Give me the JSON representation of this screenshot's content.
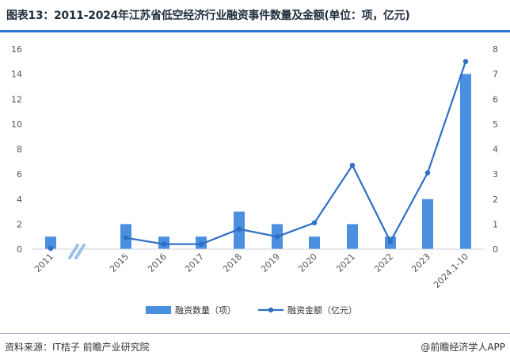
{
  "title": "图表13：2011-2024年江苏省低空经济行业融资事件数量及金额(单位：项，亿元)",
  "source": "资料来源：IT桔子 前瞻产业研究院",
  "brand": "@前瞻经济学人APP",
  "colors": {
    "bar": "#4a8fe0",
    "line": "#2e6fc4",
    "accent": "#2e75d6"
  },
  "chart_data": {
    "type": "bar",
    "categories": [
      "2011",
      "2015",
      "2016",
      "2017",
      "2018",
      "2019",
      "2020",
      "2021",
      "2022",
      "2023",
      "2024.1-10"
    ],
    "series": [
      {
        "name": "融资数量（项）",
        "type": "bar",
        "axis": "left",
        "values": [
          1,
          2,
          1,
          1,
          3,
          2,
          1,
          2,
          1,
          4,
          14
        ]
      },
      {
        "name": "融资金额（亿元）",
        "type": "line",
        "axis": "right",
        "values": [
          0.03,
          0.45,
          0.2,
          0.2,
          0.8,
          0.5,
          1.05,
          3.35,
          0.3,
          3.05,
          7.5
        ]
      }
    ],
    "y_left": {
      "lim": [
        0,
        16
      ],
      "ticks": [
        "0",
        "2",
        "4",
        "6",
        "8",
        "10",
        "12",
        "14",
        "16"
      ]
    },
    "y_right": {
      "lim": [
        0,
        8
      ],
      "ticks": [
        "0",
        "1",
        "2",
        "3",
        "4",
        "5",
        "6",
        "7",
        "8"
      ]
    },
    "axis_break_after": "2011",
    "legend_position": "bottom",
    "grid": false
  }
}
